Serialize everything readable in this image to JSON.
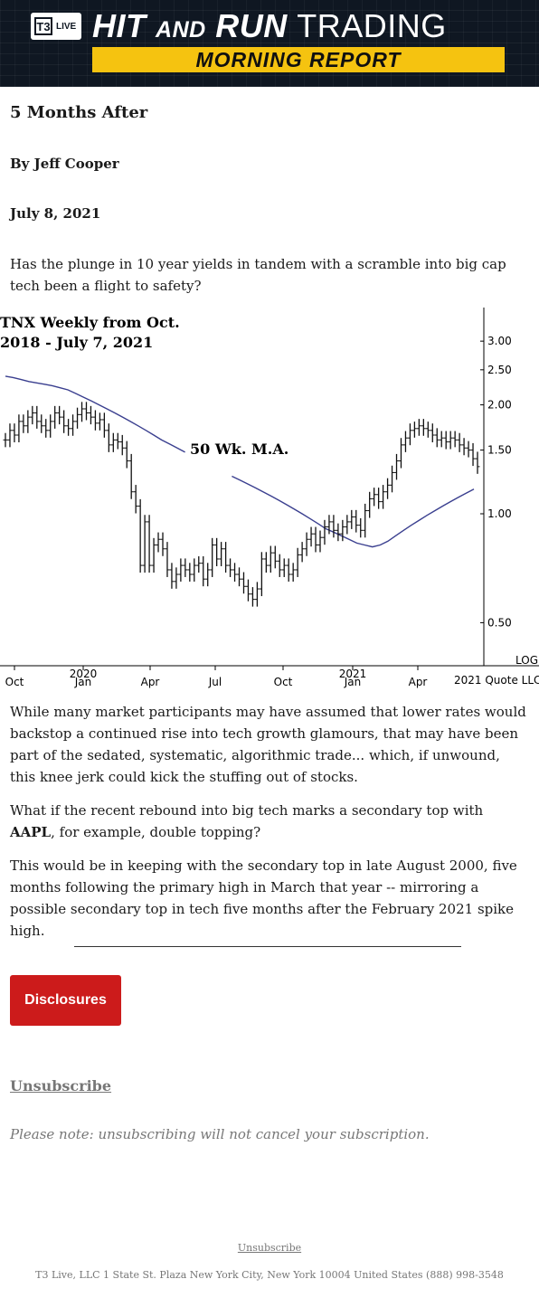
{
  "header": {
    "logo_t3": "T3",
    "logo_live": "LIVE",
    "title_hit": "HIT",
    "title_and": "AND",
    "title_run": "RUN",
    "title_trading": "TRADING",
    "subtitle": "MORNING REPORT"
  },
  "article": {
    "title": "5 Months After",
    "byline": "By Jeff Cooper",
    "date": "July 8, 2021",
    "intro": "Has the plunge in 10 year yields in tandem with a scramble into big cap tech been a flight to safety?",
    "p1": "While many market participants may have assumed that lower rates would backstop a continued rise into tech growth glamours, that may have been part of the sedated, systematic, algorithmic trade... which, if unwound, this knee jerk could kick the stuffing out of stocks.",
    "p2_before": "What if the recent rebound into big tech marks a secondary top with ",
    "p2_bold": "AAPL",
    "p2_after": ", for example, double topping?",
    "p3": "This would be in keeping with the secondary top in late August 2000, five months following the primary high in March that year -- mirroring a possible secondary top in tech five months after the February 2021 spike high."
  },
  "chart_data": {
    "type": "bar",
    "title_line1": "TNX Weekly from Oct.",
    "title_line2": "2018 - July 7, 2021",
    "annotation": "50 Wk. M.A.",
    "scale": "LOG",
    "credit": "2021 Quote LLC",
    "x_ticks": [
      {
        "label": "Oct",
        "sub": ""
      },
      {
        "label": "2020",
        "sub": "Jan"
      },
      {
        "label": "Apr",
        "sub": ""
      },
      {
        "label": "Jul",
        "sub": ""
      },
      {
        "label": "Oct",
        "sub": ""
      },
      {
        "label": "2021",
        "sub": "Jan"
      },
      {
        "label": "Apr",
        "sub": ""
      }
    ],
    "y_ticks": [
      "3.00",
      "2.50",
      "2.00",
      "1.50",
      "1.00",
      "0.50"
    ],
    "y_tick_values": [
      3.0,
      2.5,
      2.0,
      1.5,
      1.0,
      0.5
    ],
    "ylim": [
      0.4,
      3.2
    ],
    "price_weekly_close": [
      1.6,
      1.7,
      1.65,
      1.8,
      1.75,
      1.85,
      1.9,
      1.8,
      1.75,
      1.7,
      1.8,
      1.9,
      1.85,
      1.75,
      1.72,
      1.8,
      1.88,
      1.95,
      1.9,
      1.85,
      1.78,
      1.82,
      1.7,
      1.55,
      1.6,
      1.58,
      1.52,
      1.4,
      1.15,
      1.05,
      0.72,
      0.95,
      0.72,
      0.82,
      0.85,
      0.8,
      0.7,
      0.65,
      0.68,
      0.72,
      0.7,
      0.68,
      0.72,
      0.73,
      0.66,
      0.7,
      0.82,
      0.75,
      0.8,
      0.72,
      0.7,
      0.68,
      0.66,
      0.63,
      0.6,
      0.58,
      0.62,
      0.75,
      0.72,
      0.78,
      0.74,
      0.7,
      0.72,
      0.68,
      0.7,
      0.77,
      0.8,
      0.85,
      0.88,
      0.82,
      0.86,
      0.92,
      0.95,
      0.9,
      0.88,
      0.92,
      0.95,
      0.98,
      0.93,
      0.9,
      1.02,
      1.1,
      1.13,
      1.08,
      1.15,
      1.2,
      1.3,
      1.4,
      1.55,
      1.62,
      1.7,
      1.72,
      1.75,
      1.72,
      1.7,
      1.65,
      1.6,
      1.62,
      1.58,
      1.62,
      1.6,
      1.55,
      1.52,
      1.5,
      1.42,
      1.35
    ],
    "ma50_weekly": [
      2.4,
      2.38,
      2.35,
      2.32,
      2.3,
      2.28,
      2.26,
      2.23,
      2.2,
      2.15,
      2.1,
      2.05,
      2.0,
      1.95,
      1.9,
      1.85,
      1.8,
      1.75,
      1.7,
      1.65,
      1.6,
      1.56,
      1.52,
      1.48,
      1.44,
      1.4,
      1.37,
      1.34,
      1.3,
      1.27,
      1.24,
      1.21,
      1.18,
      1.15,
      1.12,
      1.09,
      1.06,
      1.03,
      1.0,
      0.97,
      0.94,
      0.91,
      0.89,
      0.87,
      0.85,
      0.83,
      0.82,
      0.81,
      0.82,
      0.84,
      0.87,
      0.9,
      0.93,
      0.96,
      0.99,
      1.02,
      1.05,
      1.08,
      1.11,
      1.14,
      1.17
    ]
  },
  "disclosures_button": "Disclosures",
  "unsubscribe": "Unsubscribe",
  "note": "Please note: unsubscribing will not cancel your subscription.",
  "footer": {
    "unsubscribe": "Unsubscribe",
    "address": "T3 Live, LLC 1 State St. Plaza New York City, New York 10004 United States (888) 998-3548"
  }
}
